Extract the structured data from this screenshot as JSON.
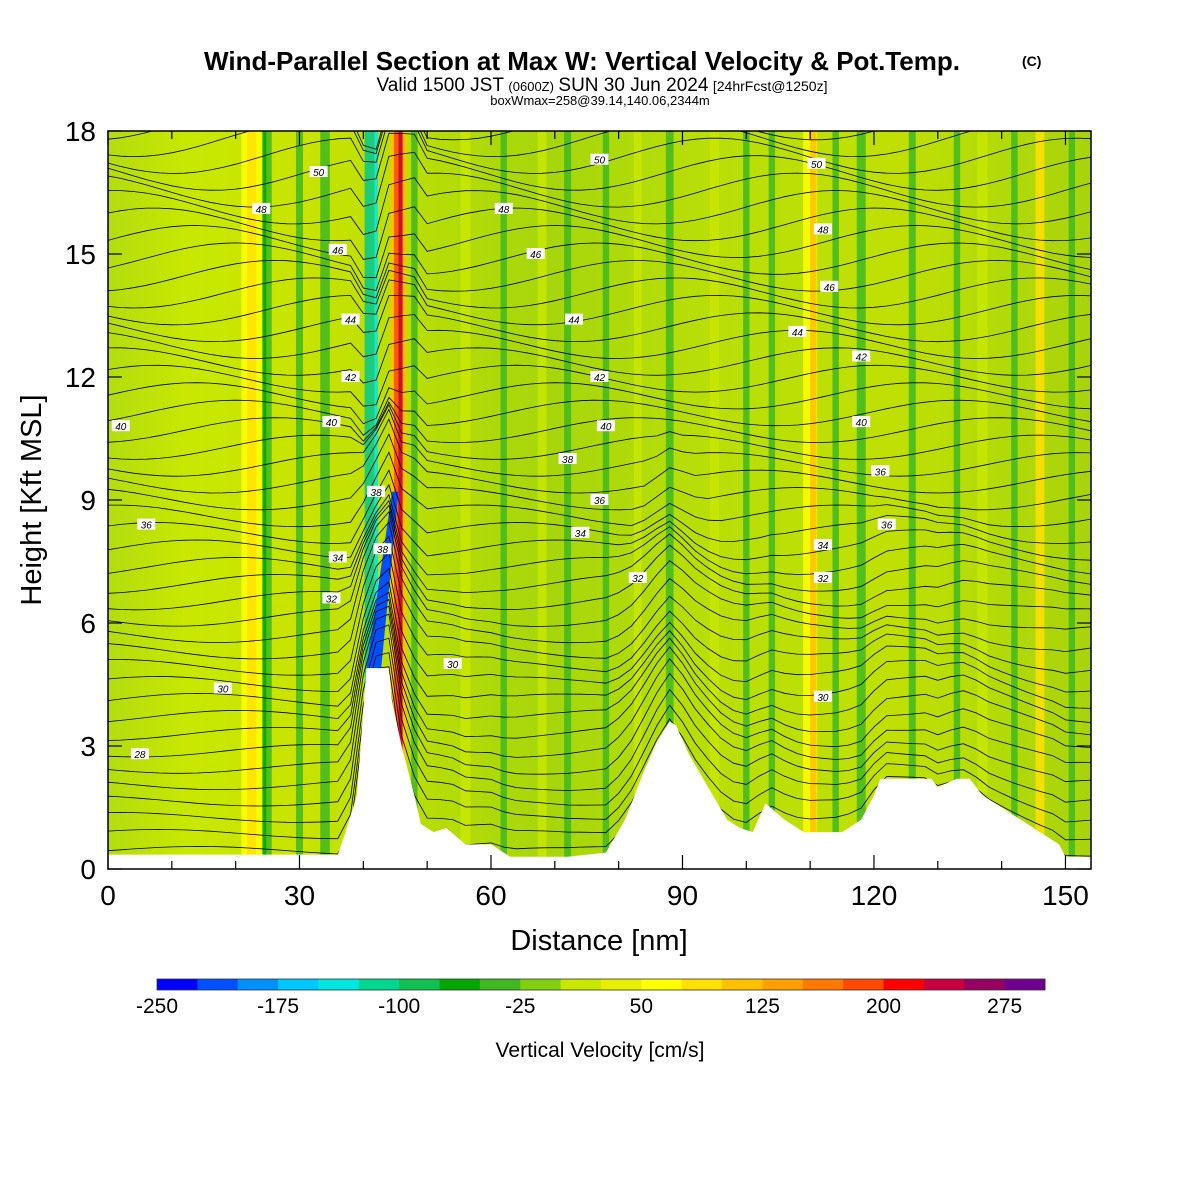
{
  "header": {
    "title": "Wind-Parallel Section at Max W: Vertical Velocity & Pot.Temp.",
    "copyright": "(C)",
    "valid_prefix": "Valid 1500 JST",
    "valid_utc": "(0600Z)",
    "valid_date": "SUN 30 Jun 2024",
    "forecast": "[24hrFcst@1250z]",
    "boxwmax": "boxWmax=258@39.14,140.06,2344m"
  },
  "chart_data": {
    "type": "heatmap",
    "xlabel": "Distance [nm]",
    "ylabel": "Height [Kft MSL]",
    "xlim": [
      0,
      154
    ],
    "ylim": [
      0,
      18
    ],
    "x_ticks": [
      0,
      30,
      60,
      90,
      120,
      150
    ],
    "y_ticks": [
      0,
      3,
      6,
      9,
      12,
      15,
      18
    ],
    "colorbar": {
      "label": "Vertical Velocity [cm/s]",
      "range": [
        -250,
        300
      ],
      "step": 25,
      "tick_labels": [
        "-250",
        "-175",
        "-100",
        "-25",
        "50",
        "125",
        "200",
        "275"
      ],
      "colors": [
        "#0000ff",
        "#0050ff",
        "#0090ff",
        "#00c8ff",
        "#00e8e0",
        "#00d890",
        "#10c050",
        "#00a800",
        "#40b820",
        "#80d010",
        "#c8e800",
        "#e8f000",
        "#ffff00",
        "#ffe000",
        "#ffc000",
        "#ffa000",
        "#ff7800",
        "#ff4800",
        "#ff0000",
        "#c80040",
        "#960060",
        "#700090"
      ]
    },
    "theta_contours": [
      {
        "label": "28",
        "x": 5,
        "y": 2.8
      },
      {
        "label": "30",
        "x": 18,
        "y": 4.4
      },
      {
        "label": "30",
        "x": 54,
        "y": 5.0
      },
      {
        "label": "30",
        "x": 112,
        "y": 4.2
      },
      {
        "label": "32",
        "x": 35,
        "y": 6.6
      },
      {
        "label": "32",
        "x": 83,
        "y": 7.1
      },
      {
        "label": "32",
        "x": 112,
        "y": 7.1
      },
      {
        "label": "34",
        "x": 36,
        "y": 7.6
      },
      {
        "label": "34",
        "x": 74,
        "y": 8.2
      },
      {
        "label": "34",
        "x": 112,
        "y": 7.9
      },
      {
        "label": "36",
        "x": 6,
        "y": 8.4
      },
      {
        "label": "36",
        "x": 77,
        "y": 9.0
      },
      {
        "label": "36",
        "x": 121,
        "y": 9.7
      },
      {
        "label": "36",
        "x": 122,
        "y": 8.4
      },
      {
        "label": "38",
        "x": 72,
        "y": 10.0
      },
      {
        "label": "38",
        "x": 42,
        "y": 9.2
      },
      {
        "label": "38",
        "x": 43,
        "y": 7.8
      },
      {
        "label": "40",
        "x": 2,
        "y": 10.8
      },
      {
        "label": "40",
        "x": 35,
        "y": 10.9
      },
      {
        "label": "40",
        "x": 78,
        "y": 10.8
      },
      {
        "label": "40",
        "x": 118,
        "y": 10.9
      },
      {
        "label": "42",
        "x": 38,
        "y": 12.0
      },
      {
        "label": "42",
        "x": 77,
        "y": 12.0
      },
      {
        "label": "42",
        "x": 118,
        "y": 12.5
      },
      {
        "label": "44",
        "x": 38,
        "y": 13.4
      },
      {
        "label": "44",
        "x": 73,
        "y": 13.4
      },
      {
        "label": "44",
        "x": 108,
        "y": 13.1
      },
      {
        "label": "46",
        "x": 36,
        "y": 15.1
      },
      {
        "label": "46",
        "x": 67,
        "y": 15.0
      },
      {
        "label": "46",
        "x": 113,
        "y": 14.2
      },
      {
        "label": "48",
        "x": 24,
        "y": 16.1
      },
      {
        "label": "48",
        "x": 62,
        "y": 16.1
      },
      {
        "label": "48",
        "x": 112,
        "y": 15.6
      },
      {
        "label": "50",
        "x": 33,
        "y": 17.0
      },
      {
        "label": "50",
        "x": 77,
        "y": 17.3
      },
      {
        "label": "50",
        "x": 111,
        "y": 17.2
      }
    ]
  }
}
